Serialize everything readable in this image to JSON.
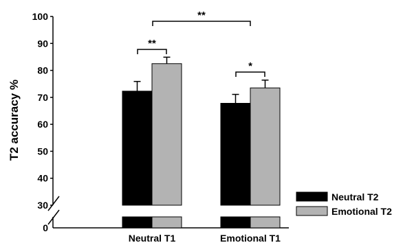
{
  "chart_data": {
    "type": "bar",
    "title": "",
    "xlabel": "",
    "ylabel": "T2 accuracy %",
    "categories": [
      "Neutral T1",
      "Emotional T1"
    ],
    "series": [
      {
        "name": "Neutral T2",
        "color": "#000000",
        "values": [
          72.3,
          67.8
        ],
        "errors": [
          3.6,
          3.3
        ]
      },
      {
        "name": "Emotional T2",
        "color": "#b3b3b3",
        "values": [
          82.5,
          73.5
        ],
        "errors": [
          2.4,
          2.9
        ]
      }
    ],
    "ylim": [
      30,
      100
    ],
    "yticks": [
      30,
      40,
      50,
      60,
      70,
      80,
      90,
      100
    ],
    "baseline_tick": 0,
    "axis_break": true,
    "grid": false,
    "legend_position": "bottom-right",
    "annotations": [
      {
        "label": "**",
        "between": "Neutral T2 vs Emotional T2 in Neutral T1"
      },
      {
        "label": "*",
        "between": "Neutral T2 vs Emotional T2 in Emotional T1"
      },
      {
        "label": "**",
        "between": "Emotional T2: Neutral T1 vs Emotional T1"
      }
    ]
  }
}
